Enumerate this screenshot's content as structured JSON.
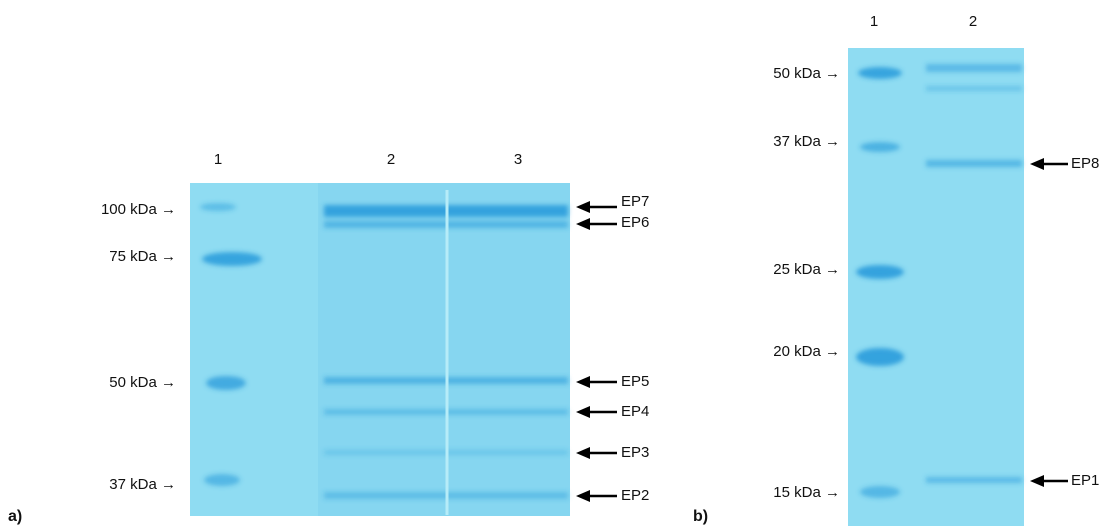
{
  "panel_a": {
    "label": "a)",
    "lanes": [
      "1",
      "2",
      "3"
    ],
    "markers": [
      "100 kDa →",
      "75 kDa →",
      "50 kDa →",
      "37 kDa →"
    ],
    "bands": [
      "EP7",
      "EP6",
      "EP5",
      "EP4",
      "EP3",
      "EP2"
    ]
  },
  "panel_b": {
    "label": "b)",
    "lanes": [
      "1",
      "2"
    ],
    "markers": [
      "50 kDa →",
      "37 kDa →",
      "25 kDa →",
      "20 kDa →",
      "15 kDa →"
    ],
    "bands": [
      "EP8",
      "EP1"
    ]
  }
}
